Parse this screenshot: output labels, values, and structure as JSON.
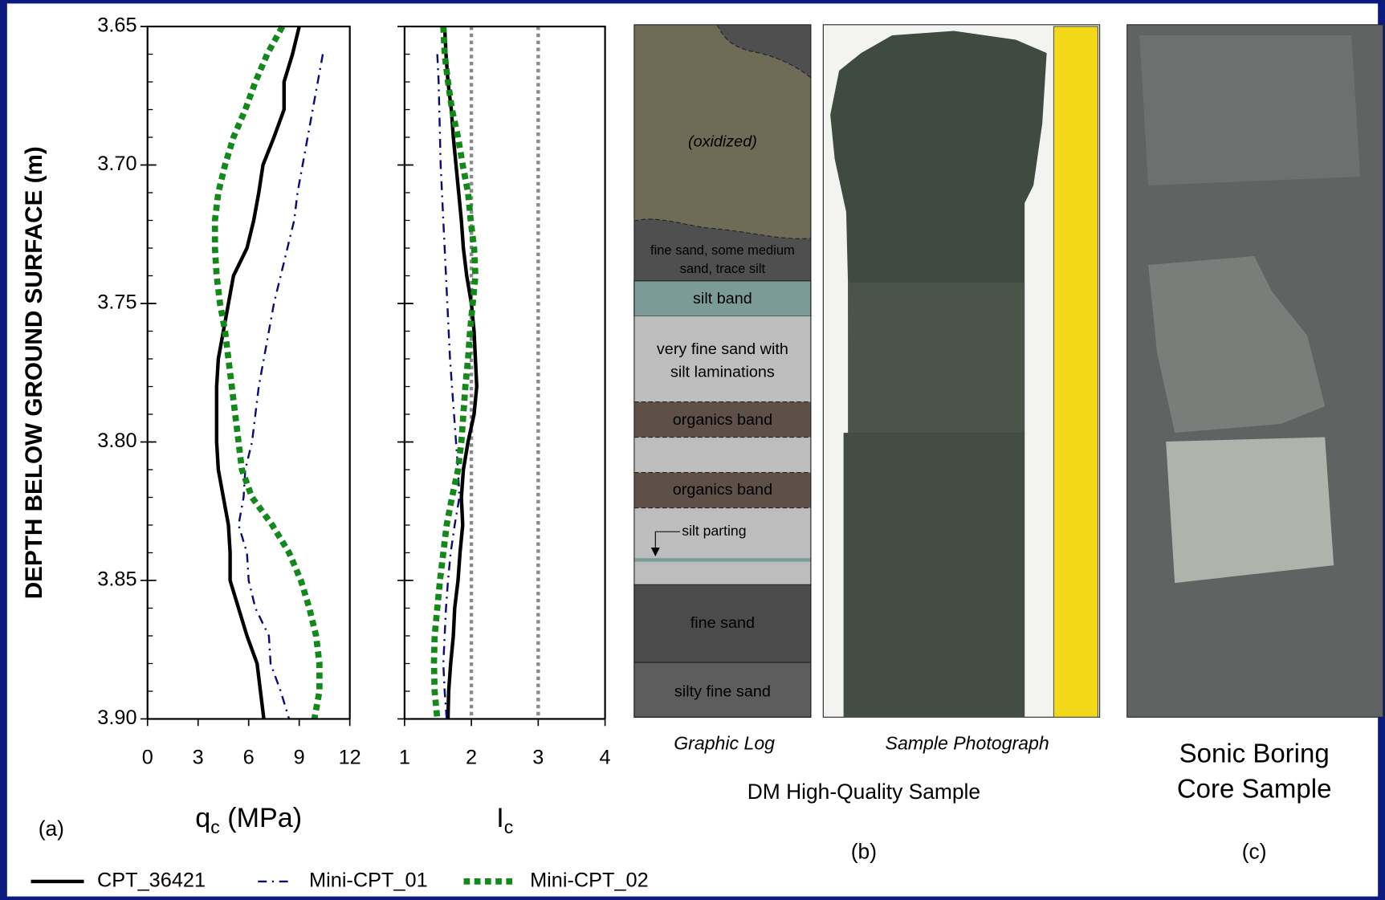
{
  "chart_data": [
    {
      "type": "line",
      "x_label": {
        "main": "q",
        "subscript": "c",
        "unit": " (MPa)"
      },
      "y_label": "DEPTH BELOW GROUND SURFACE (m)",
      "xlim": [
        0,
        12
      ],
      "xticks": [
        0,
        3,
        6,
        9,
        12
      ],
      "ylim": [
        3.65,
        3.9
      ],
      "yticks": [
        3.65,
        {
          "value": 3.7,
          "label": "3.70"
        },
        3.75,
        {
          "value": 3.8,
          "label": "3.80"
        },
        3.85,
        {
          "value": 3.9,
          "label": "3.90"
        }
      ],
      "y": [
        3.65,
        3.66,
        3.67,
        3.68,
        3.69,
        3.7,
        3.71,
        3.72,
        3.73,
        3.74,
        3.75,
        3.76,
        3.77,
        3.78,
        3.79,
        3.8,
        3.81,
        3.82,
        3.83,
        3.84,
        3.85,
        3.86,
        3.87,
        3.88,
        3.89,
        3.9
      ],
      "series": [
        {
          "name": "CPT_36421",
          "color": "#000000",
          "dash": "solid",
          "values": [
            9.0,
            8.6,
            8.1,
            8.1,
            7.5,
            6.85,
            6.6,
            6.3,
            5.9,
            5.1,
            4.8,
            4.5,
            4.2,
            4.1,
            4.1,
            4.1,
            4.2,
            4.5,
            4.8,
            4.9,
            4.9,
            5.4,
            5.9,
            6.5,
            6.7,
            6.9
          ]
        },
        {
          "name": "Mini-CPT_01",
          "color": "#0b0b78",
          "dash": "dashdot",
          "values": [
            null,
            10.4,
            10.1,
            9.8,
            9.5,
            9.2,
            8.9,
            8.7,
            8.3,
            7.9,
            7.5,
            7.2,
            6.9,
            6.6,
            6.4,
            6.2,
            5.8,
            5.7,
            5.4,
            5.9,
            6.0,
            6.4,
            7.2,
            7.3,
            7.9,
            8.4
          ]
        },
        {
          "name": "Mini-CPT_02",
          "color": "#13891b",
          "dash": "dotted",
          "values": [
            8.0,
            7.1,
            6.4,
            5.8,
            5.1,
            4.6,
            4.2,
            4.0,
            4.0,
            4.1,
            4.3,
            4.6,
            4.8,
            5.0,
            5.2,
            5.4,
            5.6,
            6.2,
            7.4,
            8.4,
            9.1,
            9.6,
            10.0,
            10.2,
            10.2,
            9.9
          ]
        }
      ]
    },
    {
      "type": "line",
      "x_label": {
        "main": "I",
        "subscript": "c"
      },
      "xlim": [
        1,
        4
      ],
      "xticks": [
        1,
        2,
        3,
        4
      ],
      "reference_lines": [
        2,
        3
      ],
      "ylim": [
        3.65,
        3.9
      ],
      "yticks": [
        3.65,
        3.7,
        3.75,
        3.8,
        3.85,
        3.9
      ],
      "y": [
        3.65,
        3.66,
        3.67,
        3.68,
        3.69,
        3.7,
        3.71,
        3.72,
        3.73,
        3.74,
        3.75,
        3.76,
        3.77,
        3.78,
        3.79,
        3.8,
        3.81,
        3.82,
        3.83,
        3.84,
        3.85,
        3.86,
        3.87,
        3.88,
        3.89,
        3.9
      ],
      "series": [
        {
          "color": "#000000",
          "dash": "solid",
          "values": [
            1.6,
            1.62,
            1.65,
            1.7,
            1.73,
            1.77,
            1.81,
            1.85,
            1.88,
            1.93,
            2.0,
            2.04,
            2.06,
            2.08,
            2.04,
            1.95,
            1.88,
            1.85,
            1.87,
            1.83,
            1.8,
            1.75,
            1.73,
            1.69,
            1.66,
            1.65
          ]
        },
        {
          "color": "#0b0b78",
          "dash": "dashdot",
          "values": [
            null,
            1.49,
            1.51,
            1.52,
            1.53,
            1.54,
            1.56,
            1.58,
            1.6,
            1.62,
            1.64,
            1.66,
            1.68,
            1.71,
            1.74,
            1.77,
            1.8,
            1.82,
            1.75,
            1.69,
            1.65,
            1.62,
            1.6,
            1.58,
            1.6,
            1.63
          ]
        },
        {
          "color": "#13891b",
          "dash": "dotted",
          "values": [
            1.58,
            1.6,
            1.65,
            1.71,
            1.8,
            1.87,
            1.95,
            1.99,
            2.04,
            2.06,
            2.02,
            1.98,
            1.95,
            1.91,
            1.88,
            1.85,
            1.8,
            1.71,
            1.63,
            1.58,
            1.53,
            1.49,
            1.45,
            1.44,
            1.45,
            1.49
          ]
        }
      ]
    }
  ],
  "panel_a": "(a)",
  "graphic_log": {
    "caption": "Graphic Log",
    "layers": [
      "(oxidized)",
      "fine sand, some medium",
      "sand, trace silt",
      "silt band",
      "very fine sand with",
      "silt laminations",
      "organics band",
      "organics band",
      "silt parting",
      "fine sand",
      "silty fine sand"
    ]
  },
  "photo_caption": "Sample Photograph",
  "panel_b_title": "DM High-Quality Sample",
  "panel_b": "(b)",
  "panel_c_title": [
    "Sonic Boring",
    "Core Sample"
  ],
  "panel_c": "(c)"
}
